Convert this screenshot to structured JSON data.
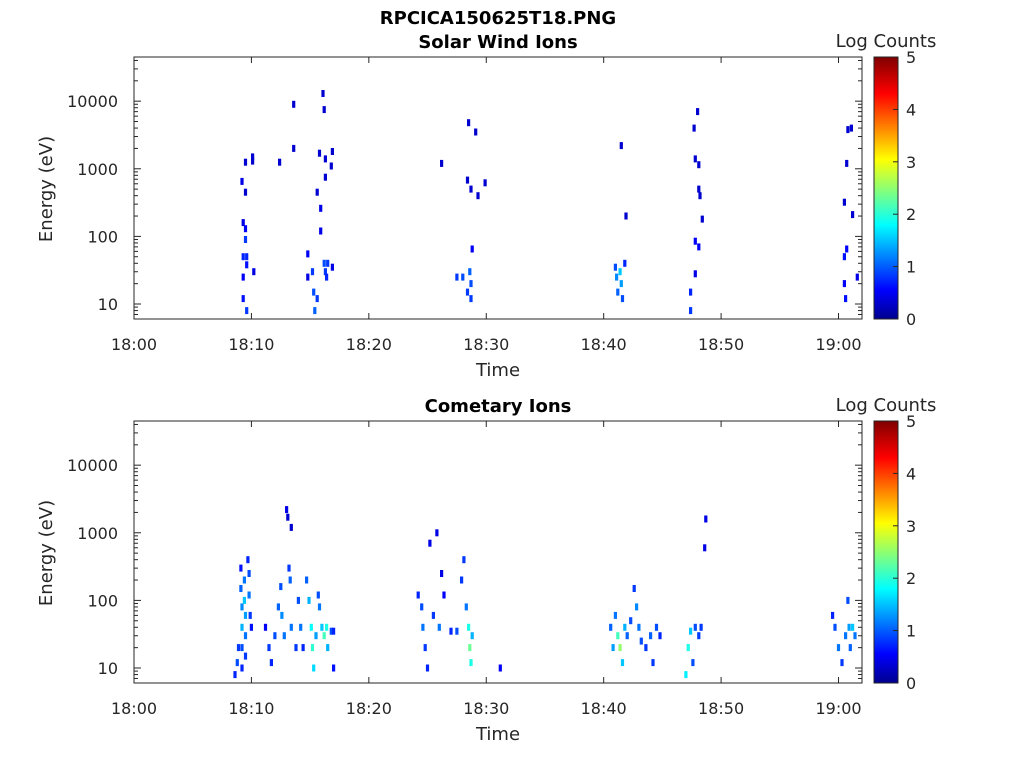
{
  "figure_title": "RPCICA150625T18.PNG",
  "colorbar": {
    "label": "Log Counts",
    "ticks": [
      0,
      1,
      2,
      3,
      4,
      5
    ],
    "colormap": "jet"
  },
  "chart_data": [
    {
      "type": "heatmap",
      "title": "Solar Wind Ions",
      "xlabel": "Time",
      "ylabel": "Energy (eV)",
      "y_scale": "log",
      "xlim": [
        "18:00",
        "19:02"
      ],
      "ylim": [
        6,
        45000
      ],
      "xticks": [
        "18:00",
        "18:10",
        "18:20",
        "18:30",
        "18:40",
        "18:50",
        "19:00"
      ],
      "yticks": [
        10,
        100,
        1000,
        10000
      ],
      "grid": false,
      "cells": [
        {
          "t": 9.2,
          "e": 650,
          "v": 0.5
        },
        {
          "t": 9.3,
          "e": 160,
          "v": 0.5
        },
        {
          "t": 9.3,
          "e": 50,
          "v": 0.8
        },
        {
          "t": 9.3,
          "e": 25,
          "v": 0.6
        },
        {
          "t": 9.3,
          "e": 12,
          "v": 0.7
        },
        {
          "t": 9.5,
          "e": 1250,
          "v": 0.4
        },
        {
          "t": 9.5,
          "e": 450,
          "v": 0.4
        },
        {
          "t": 9.5,
          "e": 130,
          "v": 0.6
        },
        {
          "t": 9.5,
          "e": 90,
          "v": 0.9
        },
        {
          "t": 9.6,
          "e": 50,
          "v": 0.8
        },
        {
          "t": 9.6,
          "e": 38,
          "v": 0.7
        },
        {
          "t": 9.6,
          "e": 8,
          "v": 0.9
        },
        {
          "t": 10.1,
          "e": 1500,
          "v": 0.4
        },
        {
          "t": 10.1,
          "e": 1300,
          "v": 0.4
        },
        {
          "t": 10.2,
          "e": 30,
          "v": 0.5
        },
        {
          "t": 12.4,
          "e": 1250,
          "v": 0.4
        },
        {
          "t": 13.6,
          "e": 9000,
          "v": 0.4
        },
        {
          "t": 13.6,
          "e": 2000,
          "v": 0.4
        },
        {
          "t": 14.8,
          "e": 55,
          "v": 0.6
        },
        {
          "t": 14.8,
          "e": 25,
          "v": 0.5
        },
        {
          "t": 15.2,
          "e": 30,
          "v": 0.9
        },
        {
          "t": 15.3,
          "e": 15,
          "v": 1.0
        },
        {
          "t": 15.4,
          "e": 8,
          "v": 1.1
        },
        {
          "t": 15.6,
          "e": 12,
          "v": 0.9
        },
        {
          "t": 15.6,
          "e": 450,
          "v": 0.4
        },
        {
          "t": 15.8,
          "e": 1700,
          "v": 0.4
        },
        {
          "t": 15.9,
          "e": 260,
          "v": 0.5
        },
        {
          "t": 15.9,
          "e": 120,
          "v": 0.5
        },
        {
          "t": 16.1,
          "e": 13000,
          "v": 0.4
        },
        {
          "t": 16.2,
          "e": 7500,
          "v": 0.4
        },
        {
          "t": 16.3,
          "e": 1400,
          "v": 0.4
        },
        {
          "t": 16.3,
          "e": 750,
          "v": 0.4
        },
        {
          "t": 16.2,
          "e": 40,
          "v": 1.0
        },
        {
          "t": 16.3,
          "e": 30,
          "v": 0.9
        },
        {
          "t": 16.4,
          "e": 25,
          "v": 0.8
        },
        {
          "t": 16.5,
          "e": 40,
          "v": 0.9
        },
        {
          "t": 16.8,
          "e": 1100,
          "v": 0.4
        },
        {
          "t": 16.9,
          "e": 1800,
          "v": 0.4
        },
        {
          "t": 16.9,
          "e": 35,
          "v": 0.5
        },
        {
          "t": 26.2,
          "e": 1200,
          "v": 0.4
        },
        {
          "t": 27.5,
          "e": 25,
          "v": 0.9
        },
        {
          "t": 28.0,
          "e": 25,
          "v": 1.0
        },
        {
          "t": 28.4,
          "e": 680,
          "v": 0.4
        },
        {
          "t": 28.4,
          "e": 15,
          "v": 0.9
        },
        {
          "t": 28.5,
          "e": 4800,
          "v": 0.4
        },
        {
          "t": 28.6,
          "e": 30,
          "v": 1.1
        },
        {
          "t": 28.7,
          "e": 20,
          "v": 1.0
        },
        {
          "t": 28.7,
          "e": 12,
          "v": 0.9
        },
        {
          "t": 28.7,
          "e": 500,
          "v": 0.4
        },
        {
          "t": 28.8,
          "e": 65,
          "v": 0.6
        },
        {
          "t": 29.1,
          "e": 3500,
          "v": 0.4
        },
        {
          "t": 29.3,
          "e": 400,
          "v": 0.4
        },
        {
          "t": 29.9,
          "e": 620,
          "v": 0.4
        },
        {
          "t": 41.0,
          "e": 35,
          "v": 1.0
        },
        {
          "t": 41.1,
          "e": 25,
          "v": 1.3
        },
        {
          "t": 41.2,
          "e": 15,
          "v": 1.1
        },
        {
          "t": 41.4,
          "e": 30,
          "v": 1.6
        },
        {
          "t": 41.5,
          "e": 20,
          "v": 1.4
        },
        {
          "t": 41.6,
          "e": 12,
          "v": 1.0
        },
        {
          "t": 41.5,
          "e": 2200,
          "v": 0.4
        },
        {
          "t": 41.8,
          "e": 40,
          "v": 0.8
        },
        {
          "t": 41.9,
          "e": 200,
          "v": 0.4
        },
        {
          "t": 47.4,
          "e": 15,
          "v": 0.8
        },
        {
          "t": 47.4,
          "e": 8,
          "v": 0.9
        },
        {
          "t": 47.7,
          "e": 4000,
          "v": 0.4
        },
        {
          "t": 47.8,
          "e": 1400,
          "v": 0.4
        },
        {
          "t": 47.8,
          "e": 85,
          "v": 0.6
        },
        {
          "t": 47.8,
          "e": 28,
          "v": 0.5
        },
        {
          "t": 48.0,
          "e": 7000,
          "v": 0.4
        },
        {
          "t": 48.1,
          "e": 1150,
          "v": 0.4
        },
        {
          "t": 48.1,
          "e": 500,
          "v": 0.4
        },
        {
          "t": 48.2,
          "e": 400,
          "v": 0.4
        },
        {
          "t": 48.1,
          "e": 70,
          "v": 0.6
        },
        {
          "t": 48.4,
          "e": 180,
          "v": 0.4
        },
        {
          "t": 60.5,
          "e": 320,
          "v": 0.4
        },
        {
          "t": 60.5,
          "e": 50,
          "v": 0.7
        },
        {
          "t": 60.5,
          "e": 20,
          "v": 0.6
        },
        {
          "t": 60.6,
          "e": 12,
          "v": 0.7
        },
        {
          "t": 60.7,
          "e": 1200,
          "v": 0.4
        },
        {
          "t": 60.7,
          "e": 65,
          "v": 0.6
        },
        {
          "t": 60.8,
          "e": 3800,
          "v": 0.4
        },
        {
          "t": 61.1,
          "e": 4000,
          "v": 0.4
        },
        {
          "t": 61.2,
          "e": 210,
          "v": 0.4
        },
        {
          "t": 61.6,
          "e": 25,
          "v": 0.5
        }
      ]
    },
    {
      "type": "heatmap",
      "title": "Cometary Ions",
      "xlabel": "Time",
      "ylabel": "Energy (eV)",
      "y_scale": "log",
      "xlim": [
        "18:00",
        "19:02"
      ],
      "ylim": [
        6,
        45000
      ],
      "xticks": [
        "18:00",
        "18:10",
        "18:20",
        "18:30",
        "18:40",
        "18:50",
        "19:00"
      ],
      "yticks": [
        10,
        100,
        1000,
        10000
      ],
      "grid": false,
      "cells": [
        {
          "t": 8.6,
          "e": 8,
          "v": 0.8
        },
        {
          "t": 8.8,
          "e": 12,
          "v": 1.0
        },
        {
          "t": 8.9,
          "e": 20,
          "v": 0.9
        },
        {
          "t": 9.1,
          "e": 300,
          "v": 0.7
        },
        {
          "t": 9.1,
          "e": 150,
          "v": 1.1
        },
        {
          "t": 9.2,
          "e": 80,
          "v": 1.3
        },
        {
          "t": 9.2,
          "e": 40,
          "v": 1.5
        },
        {
          "t": 9.2,
          "e": 20,
          "v": 1.0
        },
        {
          "t": 9.2,
          "e": 10,
          "v": 0.8
        },
        {
          "t": 9.4,
          "e": 200,
          "v": 1.2
        },
        {
          "t": 9.4,
          "e": 100,
          "v": 1.6
        },
        {
          "t": 9.5,
          "e": 60,
          "v": 1.4
        },
        {
          "t": 9.5,
          "e": 30,
          "v": 1.2
        },
        {
          "t": 9.5,
          "e": 15,
          "v": 0.9
        },
        {
          "t": 9.7,
          "e": 400,
          "v": 0.8
        },
        {
          "t": 9.8,
          "e": 250,
          "v": 1.0
        },
        {
          "t": 9.8,
          "e": 120,
          "v": 1.2
        },
        {
          "t": 9.9,
          "e": 60,
          "v": 0.9
        },
        {
          "t": 10.0,
          "e": 40,
          "v": 0.7
        },
        {
          "t": 11.2,
          "e": 40,
          "v": 0.6
        },
        {
          "t": 11.5,
          "e": 20,
          "v": 0.9
        },
        {
          "t": 11.7,
          "e": 12,
          "v": 0.8
        },
        {
          "t": 12.0,
          "e": 30,
          "v": 1.0
        },
        {
          "t": 12.3,
          "e": 80,
          "v": 1.1
        },
        {
          "t": 12.5,
          "e": 160,
          "v": 1.0
        },
        {
          "t": 12.6,
          "e": 60,
          "v": 1.3
        },
        {
          "t": 12.8,
          "e": 30,
          "v": 1.2
        },
        {
          "t": 13.0,
          "e": 2200,
          "v": 0.5
        },
        {
          "t": 13.1,
          "e": 1700,
          "v": 0.4
        },
        {
          "t": 13.2,
          "e": 300,
          "v": 0.9
        },
        {
          "t": 13.3,
          "e": 200,
          "v": 1.1
        },
        {
          "t": 13.4,
          "e": 40,
          "v": 1.2
        },
        {
          "t": 13.4,
          "e": 1200,
          "v": 0.4
        },
        {
          "t": 13.8,
          "e": 20,
          "v": 0.9
        },
        {
          "t": 14.0,
          "e": 100,
          "v": 1.0
        },
        {
          "t": 14.2,
          "e": 40,
          "v": 1.2
        },
        {
          "t": 14.4,
          "e": 20,
          "v": 0.8
        },
        {
          "t": 14.7,
          "e": 200,
          "v": 1.1
        },
        {
          "t": 14.9,
          "e": 100,
          "v": 1.5
        },
        {
          "t": 15.1,
          "e": 40,
          "v": 1.9
        },
        {
          "t": 15.2,
          "e": 20,
          "v": 2.1
        },
        {
          "t": 15.3,
          "e": 10,
          "v": 1.7
        },
        {
          "t": 15.5,
          "e": 30,
          "v": 1.4
        },
        {
          "t": 15.7,
          "e": 120,
          "v": 1.0
        },
        {
          "t": 15.8,
          "e": 80,
          "v": 1.2
        },
        {
          "t": 16.0,
          "e": 40,
          "v": 1.6
        },
        {
          "t": 16.2,
          "e": 30,
          "v": 2.2
        },
        {
          "t": 16.4,
          "e": 40,
          "v": 2.0
        },
        {
          "t": 16.5,
          "e": 20,
          "v": 1.5
        },
        {
          "t": 16.8,
          "e": 35,
          "v": 1.0
        },
        {
          "t": 17.0,
          "e": 35,
          "v": 0.8
        },
        {
          "t": 17.0,
          "e": 10,
          "v": 0.7
        },
        {
          "t": 24.2,
          "e": 120,
          "v": 0.8
        },
        {
          "t": 24.5,
          "e": 80,
          "v": 1.0
        },
        {
          "t": 24.6,
          "e": 40,
          "v": 1.2
        },
        {
          "t": 24.8,
          "e": 20,
          "v": 0.9
        },
        {
          "t": 25.0,
          "e": 10,
          "v": 0.8
        },
        {
          "t": 25.2,
          "e": 700,
          "v": 0.5
        },
        {
          "t": 25.5,
          "e": 60,
          "v": 0.9
        },
        {
          "t": 25.8,
          "e": 1000,
          "v": 0.5
        },
        {
          "t": 26.0,
          "e": 40,
          "v": 1.2
        },
        {
          "t": 26.2,
          "e": 250,
          "v": 0.5
        },
        {
          "t": 26.4,
          "e": 120,
          "v": 0.6
        },
        {
          "t": 27.0,
          "e": 35,
          "v": 0.8
        },
        {
          "t": 27.5,
          "e": 35,
          "v": 1.0
        },
        {
          "t": 27.9,
          "e": 200,
          "v": 0.9
        },
        {
          "t": 28.1,
          "e": 400,
          "v": 0.9
        },
        {
          "t": 28.3,
          "e": 80,
          "v": 1.2
        },
        {
          "t": 28.5,
          "e": 40,
          "v": 2.0
        },
        {
          "t": 28.6,
          "e": 20,
          "v": 2.4
        },
        {
          "t": 28.7,
          "e": 12,
          "v": 2.0
        },
        {
          "t": 28.8,
          "e": 30,
          "v": 1.5
        },
        {
          "t": 31.2,
          "e": 10,
          "v": 0.6
        },
        {
          "t": 40.6,
          "e": 40,
          "v": 1.1
        },
        {
          "t": 40.8,
          "e": 20,
          "v": 1.4
        },
        {
          "t": 41.0,
          "e": 60,
          "v": 1.2
        },
        {
          "t": 41.2,
          "e": 30,
          "v": 2.2
        },
        {
          "t": 41.4,
          "e": 20,
          "v": 2.6
        },
        {
          "t": 41.6,
          "e": 12,
          "v": 1.6
        },
        {
          "t": 41.8,
          "e": 40,
          "v": 1.5
        },
        {
          "t": 42.0,
          "e": 30,
          "v": 1.1
        },
        {
          "t": 42.3,
          "e": 50,
          "v": 1.0
        },
        {
          "t": 42.6,
          "e": 150,
          "v": 0.9
        },
        {
          "t": 42.8,
          "e": 80,
          "v": 1.3
        },
        {
          "t": 43.0,
          "e": 40,
          "v": 1.2
        },
        {
          "t": 43.2,
          "e": 25,
          "v": 1.0
        },
        {
          "t": 43.6,
          "e": 20,
          "v": 0.9
        },
        {
          "t": 44.0,
          "e": 30,
          "v": 1.1
        },
        {
          "t": 44.2,
          "e": 12,
          "v": 0.9
        },
        {
          "t": 44.5,
          "e": 40,
          "v": 1.0
        },
        {
          "t": 44.8,
          "e": 30,
          "v": 0.8
        },
        {
          "t": 47.0,
          "e": 8,
          "v": 1.8
        },
        {
          "t": 47.2,
          "e": 20,
          "v": 2.0
        },
        {
          "t": 47.4,
          "e": 35,
          "v": 1.6
        },
        {
          "t": 47.6,
          "e": 12,
          "v": 1.0
        },
        {
          "t": 47.8,
          "e": 40,
          "v": 1.0
        },
        {
          "t": 48.1,
          "e": 30,
          "v": 0.9
        },
        {
          "t": 48.3,
          "e": 40,
          "v": 0.9
        },
        {
          "t": 48.6,
          "e": 600,
          "v": 0.5
        },
        {
          "t": 48.7,
          "e": 1600,
          "v": 0.5
        },
        {
          "t": 59.5,
          "e": 60,
          "v": 0.8
        },
        {
          "t": 59.7,
          "e": 40,
          "v": 1.0
        },
        {
          "t": 60.0,
          "e": 20,
          "v": 1.2
        },
        {
          "t": 60.3,
          "e": 12,
          "v": 0.9
        },
        {
          "t": 60.6,
          "e": 30,
          "v": 1.2
        },
        {
          "t": 60.8,
          "e": 100,
          "v": 1.0
        },
        {
          "t": 60.9,
          "e": 40,
          "v": 1.4
        },
        {
          "t": 61.0,
          "e": 20,
          "v": 1.1
        },
        {
          "t": 61.2,
          "e": 40,
          "v": 1.6
        },
        {
          "t": 61.4,
          "e": 30,
          "v": 1.2
        }
      ]
    }
  ]
}
